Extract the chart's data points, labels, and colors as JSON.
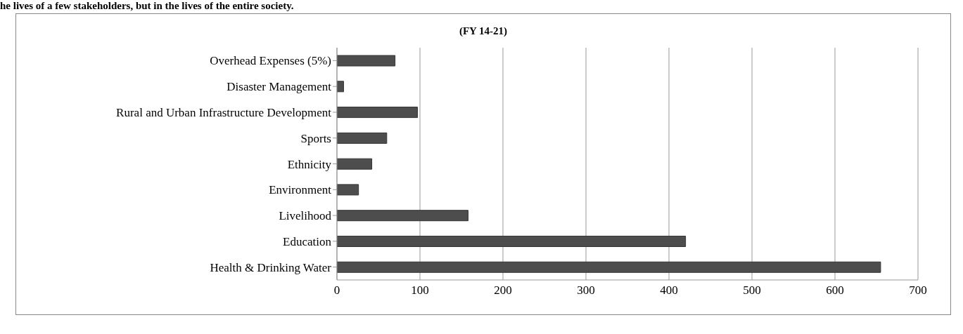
{
  "chart_data": {
    "type": "bar",
    "orientation": "horizontal",
    "title": "(FY 14-21)",
    "annotations": [
      "he lives of a few stakeholders, but in the lives of the entire society."
    ],
    "categories": [
      "Overhead Expenses (5%)",
      "Disaster Management",
      "Rural and Urban Infrastructure Development",
      "Sports",
      "Ethnicity",
      "Environment",
      "Livelihood",
      "Education",
      "Health & Drinking Water"
    ],
    "values": [
      70,
      8,
      97,
      60,
      42,
      26,
      158,
      420,
      655
    ],
    "color": "#4d4d4d",
    "xlim": [
      0,
      700
    ],
    "xticks": [
      0,
      100,
      200,
      300,
      400,
      500,
      600,
      700
    ],
    "grid": "x"
  }
}
